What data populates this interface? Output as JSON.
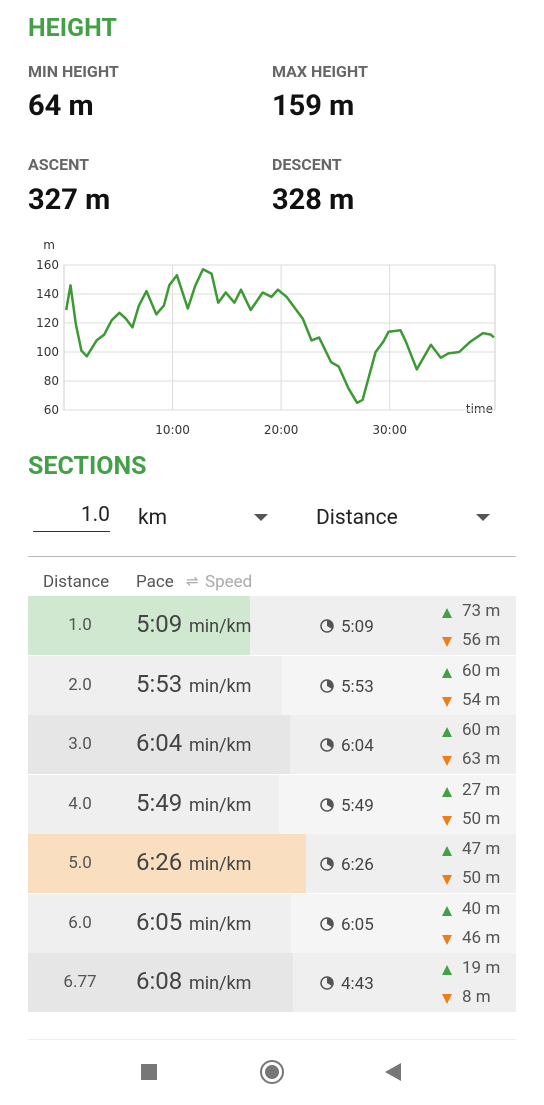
{
  "height": {
    "title": "HEIGHT",
    "stats": [
      {
        "label": "MIN HEIGHT",
        "value": "64 m"
      },
      {
        "label": "MAX HEIGHT",
        "value": "159 m"
      },
      {
        "label": "ASCENT",
        "value": "327 m"
      },
      {
        "label": "DESCENT",
        "value": "328 m"
      }
    ]
  },
  "chart_data": {
    "type": "line",
    "y_unit": "m",
    "x_label": "time",
    "color": "#3c9a34",
    "grid": true,
    "xlim": [
      0,
      39.7
    ],
    "ylim": [
      60,
      160
    ],
    "yticks": [
      60,
      80,
      100,
      120,
      140,
      160
    ],
    "xticks": [
      {
        "value": 10,
        "label": "10:00"
      },
      {
        "value": 20,
        "label": "20:00"
      },
      {
        "value": 30,
        "label": "30:00"
      }
    ],
    "x": [
      0.2,
      0.6,
      1.1,
      1.6,
      2.1,
      3.0,
      3.7,
      4.4,
      5.1,
      5.7,
      6.3,
      6.9,
      7.6,
      8.5,
      9.2,
      9.7,
      10.4,
      11.4,
      12.1,
      12.8,
      13.6,
      14.2,
      14.9,
      15.7,
      16.3,
      17.2,
      18.3,
      19.1,
      19.7,
      20.5,
      21.4,
      22.0,
      22.8,
      23.5,
      24.6,
      25.3,
      26.2,
      27.0,
      27.5,
      28.7,
      29.4,
      29.9,
      31.0,
      31.5,
      32.5,
      33.8,
      34.7,
      35.4,
      36.4,
      37.4,
      38.6,
      39.3,
      39.6
    ],
    "values": [
      129,
      146,
      119,
      101,
      97,
      108,
      112,
      122,
      127,
      123,
      117,
      132,
      142,
      126,
      132,
      146,
      153,
      130,
      146,
      157,
      154,
      134,
      141,
      134,
      143,
      129,
      141,
      138,
      143,
      138,
      129,
      123,
      108,
      110,
      93,
      90,
      75,
      65,
      67,
      100,
      107,
      114,
      115,
      107,
      88,
      105,
      96,
      99,
      100,
      107,
      113,
      112,
      110
    ]
  },
  "sections": {
    "title": "SECTIONS",
    "interval": "1.0",
    "unit": "km",
    "mode": "Distance",
    "header": {
      "distance": "Distance",
      "pace": "Pace",
      "speed": "Speed"
    },
    "pace_unit": "min/km",
    "rows": [
      {
        "distance": "1.0",
        "pace": "5:09",
        "time": "5:09",
        "ascent": "73 m",
        "descent": "56 m",
        "bar_color": "#cfe8cf"
      },
      {
        "distance": "2.0",
        "pace": "5:53",
        "time": "5:53",
        "ascent": "60 m",
        "descent": "54 m",
        "bar_color": "#efefef"
      },
      {
        "distance": "3.0",
        "pace": "6:04",
        "time": "6:04",
        "ascent": "60 m",
        "descent": "63 m",
        "bar_color": "#e6e6e6"
      },
      {
        "distance": "4.0",
        "pace": "5:49",
        "time": "5:49",
        "ascent": "27 m",
        "descent": "50 m",
        "bar_color": "#efefef"
      },
      {
        "distance": "5.0",
        "pace": "6:26",
        "time": "6:26",
        "ascent": "47 m",
        "descent": "50 m",
        "bar_color": "#f9dfc0"
      },
      {
        "distance": "6.0",
        "pace": "6:05",
        "time": "6:05",
        "ascent": "40 m",
        "descent": "46 m",
        "bar_color": "#efefef"
      },
      {
        "distance": "6.77",
        "pace": "6:08",
        "time": "4:43",
        "ascent": "19 m",
        "descent": "8 m",
        "bar_color": "#e6e6e6"
      }
    ]
  }
}
